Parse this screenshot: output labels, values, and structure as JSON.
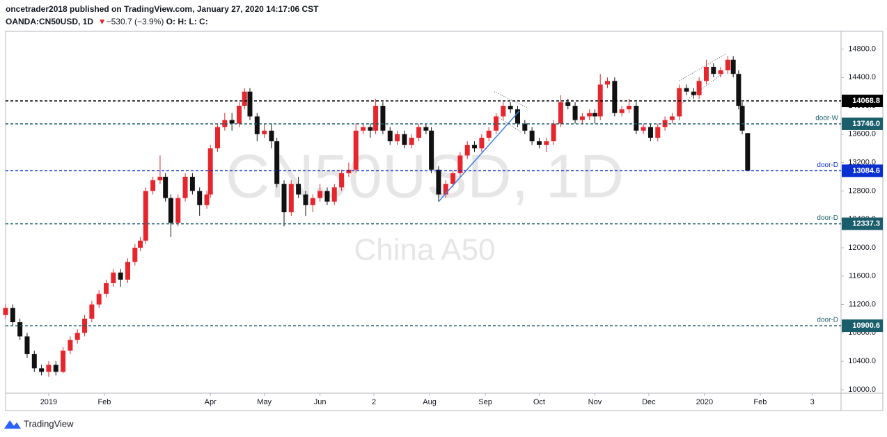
{
  "header": {
    "byline": "oncetrader2018 published on TradingView.com, January 27, 2020 14:17:06 CST",
    "symbol": "OANDA:CN50USD, 1D",
    "change": "−530.7 (−3.9%)",
    "o": "O:",
    "h": "H:",
    "l": "L:",
    "c": "C:"
  },
  "footer": {
    "brand": "TradingView"
  },
  "chart_data": {
    "type": "candlestick",
    "watermark": "CN50USD, 1D",
    "watermark_sub": "China A50",
    "up_color": "#e5262d",
    "down_color": "#111111",
    "xlim": [
      -24,
      441
    ],
    "xticks": [
      {
        "value": 0,
        "label": "2019"
      },
      {
        "value": 31,
        "label": "Feb"
      },
      {
        "value": 90,
        "label": "Apr"
      },
      {
        "value": 120,
        "label": "May"
      },
      {
        "value": 151,
        "label": "Jun"
      },
      {
        "value": 181,
        "label": "2"
      },
      {
        "value": 212,
        "label": "Aug"
      },
      {
        "value": 243,
        "label": "Sep"
      },
      {
        "value": 273,
        "label": "Oct"
      },
      {
        "value": 304,
        "label": "Nov"
      },
      {
        "value": 334,
        "label": "Dec"
      },
      {
        "value": 365,
        "label": "2020"
      },
      {
        "value": 396,
        "label": "Feb"
      },
      {
        "value": 425,
        "label": "3"
      }
    ],
    "ylim": [
      9950,
      15050
    ],
    "yticks": [
      {
        "value": 10000,
        "label": "10000.0"
      },
      {
        "value": 10400,
        "label": "10400.0"
      },
      {
        "value": 10800,
        "label": "10800.0"
      },
      {
        "value": 11200,
        "label": "11200.0"
      },
      {
        "value": 11600,
        "label": "11600.0"
      },
      {
        "value": 12000,
        "label": "12000.0"
      },
      {
        "value": 12400,
        "label": "12400.0"
      },
      {
        "value": 12800,
        "label": "12800.0"
      },
      {
        "value": 13200,
        "label": "13200.0"
      },
      {
        "value": 13600,
        "label": "13600.0"
      },
      {
        "value": 14000,
        "label": "14000.0"
      },
      {
        "value": 14400,
        "label": "14400.0"
      },
      {
        "value": 14800,
        "label": "14800.0"
      }
    ],
    "levels": [
      {
        "value": 14068.8,
        "label": "14068.8",
        "color": "#000000"
      },
      {
        "value": 13746.0,
        "label": "13746.0",
        "color": "#1b5e6b",
        "text": "door-W"
      },
      {
        "value": 13084.6,
        "label": "13084.6",
        "color": "#0a2fd1",
        "text": "door-D"
      },
      {
        "value": 12337.3,
        "label": "12337.3",
        "color": "#1b5e6b",
        "text": "door-D"
      },
      {
        "value": 10900.6,
        "label": "10900.6",
        "color": "#1b5e6b",
        "text": "door-D"
      }
    ],
    "drawings": [
      {
        "color": "#3d7fe0",
        "style": "solid",
        "points": [
          [
            217,
            12650
          ],
          [
            262,
            13930
          ]
        ]
      },
      {
        "color": "#555555",
        "style": "dotted",
        "points": [
          [
            248,
            14199
          ],
          [
            267,
            13966
          ]
        ]
      },
      {
        "color": "#555555",
        "style": "dotted",
        "points": [
          [
            249,
            13860
          ],
          [
            263,
            13627
          ]
        ]
      },
      {
        "color": "#555555",
        "style": "dotted",
        "points": [
          [
            351,
            14354
          ],
          [
            377,
            14732
          ]
        ]
      },
      {
        "color": "#555555",
        "style": "dotted",
        "points": [
          [
            351,
            14005
          ],
          [
            376,
            14470
          ]
        ]
      }
    ],
    "candles": [
      [
        -24,
        11050,
        11200,
        11000,
        11150
      ],
      [
        -20,
        11150,
        11200,
        10900,
        10950
      ],
      [
        -16,
        10950,
        11000,
        10700,
        10750
      ],
      [
        -12,
        10750,
        10800,
        10450,
        10500
      ],
      [
        -8,
        10500,
        10550,
        10250,
        10300
      ],
      [
        -4,
        10300,
        10350,
        10200,
        10250
      ],
      [
        0,
        10250,
        10400,
        10180,
        10350
      ],
      [
        4,
        10350,
        10400,
        10200,
        10250
      ],
      [
        8,
        10250,
        10600,
        10230,
        10550
      ],
      [
        12,
        10550,
        10750,
        10500,
        10700
      ],
      [
        16,
        10700,
        10850,
        10650,
        10800
      ],
      [
        20,
        10800,
        11050,
        10750,
        11000
      ],
      [
        24,
        11000,
        11250,
        10950,
        11200
      ],
      [
        28,
        11200,
        11400,
        11150,
        11350
      ],
      [
        32,
        11350,
        11550,
        11300,
        11500
      ],
      [
        36,
        11500,
        11700,
        11450,
        11650
      ],
      [
        40,
        11650,
        11700,
        11450,
        11550
      ],
      [
        44,
        11550,
        11850,
        11500,
        11800
      ],
      [
        48,
        11800,
        12050,
        11750,
        12000
      ],
      [
        51,
        12000,
        12150,
        11950,
        12100
      ],
      [
        54,
        12100,
        12850,
        12050,
        12800
      ],
      [
        58,
        12800,
        13000,
        12750,
        12950
      ],
      [
        62,
        12950,
        13300,
        12900,
        13000
      ],
      [
        65,
        13000,
        13050,
        12650,
        12700
      ],
      [
        68,
        12700,
        12750,
        12150,
        12350
      ],
      [
        72,
        12350,
        12750,
        12300,
        12700
      ],
      [
        76,
        12700,
        13050,
        12650,
        13000
      ],
      [
        80,
        13000,
        13050,
        12750,
        12800
      ],
      [
        84,
        12800,
        12850,
        12450,
        12600
      ],
      [
        88,
        12600,
        12800,
        12550,
        12750
      ],
      [
        90,
        12750,
        13450,
        12700,
        13400
      ],
      [
        94,
        13400,
        13750,
        13350,
        13700
      ],
      [
        98,
        13700,
        13900,
        13650,
        13800
      ],
      [
        102,
        13800,
        13900,
        13650,
        13750
      ],
      [
        106,
        13750,
        14050,
        13700,
        14000
      ],
      [
        109,
        14000,
        14250,
        13950,
        14200
      ],
      [
        112,
        14200,
        14250,
        13800,
        13850
      ],
      [
        116,
        13850,
        13900,
        13500,
        13600
      ],
      [
        120,
        13600,
        13750,
        13550,
        13650
      ],
      [
        124,
        13650,
        13750,
        13400,
        13500
      ],
      [
        127,
        13500,
        13550,
        12850,
        12900
      ],
      [
        131,
        12900,
        12950,
        12300,
        12500
      ],
      [
        135,
        12500,
        12950,
        12450,
        12900
      ],
      [
        139,
        12900,
        13000,
        12700,
        12750
      ],
      [
        143,
        12750,
        12800,
        12450,
        12600
      ],
      [
        147,
        12600,
        12750,
        12500,
        12700
      ],
      [
        151,
        12700,
        12900,
        12650,
        12800
      ],
      [
        155,
        12800,
        12850,
        12600,
        12650
      ],
      [
        159,
        12650,
        12900,
        12600,
        12850
      ],
      [
        163,
        12850,
        13100,
        12800,
        13050
      ],
      [
        167,
        13050,
        13200,
        13000,
        13100
      ],
      [
        171,
        13100,
        13750,
        13050,
        13650
      ],
      [
        175,
        13650,
        13750,
        13600,
        13700
      ],
      [
        179,
        13700,
        13750,
        13550,
        13650
      ],
      [
        182,
        13650,
        14100,
        13600,
        14000
      ],
      [
        186,
        14000,
        14050,
        13600,
        13650
      ],
      [
        190,
        13650,
        13700,
        13450,
        13500
      ],
      [
        194,
        13500,
        13650,
        13450,
        13600
      ],
      [
        198,
        13600,
        13650,
        13400,
        13450
      ],
      [
        202,
        13450,
        13600,
        13400,
        13550
      ],
      [
        206,
        13550,
        13750,
        13500,
        13700
      ],
      [
        210,
        13700,
        13750,
        13600,
        13650
      ],
      [
        213,
        13650,
        13700,
        13050,
        13100
      ],
      [
        217,
        13100,
        13150,
        12650,
        12750
      ],
      [
        221,
        12750,
        12950,
        12700,
        12900
      ],
      [
        225,
        12900,
        13100,
        12850,
        13050
      ],
      [
        229,
        13050,
        13350,
        13000,
        13300
      ],
      [
        233,
        13300,
        13500,
        13250,
        13450
      ],
      [
        237,
        13450,
        13500,
        13350,
        13400
      ],
      [
        241,
        13400,
        13600,
        13350,
        13550
      ],
      [
        245,
        13550,
        13700,
        13500,
        13650
      ],
      [
        249,
        13650,
        13900,
        13600,
        13850
      ],
      [
        253,
        13850,
        14050,
        13800,
        14000
      ],
      [
        257,
        14000,
        14050,
        13900,
        13950
      ],
      [
        261,
        13950,
        14000,
        13700,
        13750
      ],
      [
        265,
        13750,
        13800,
        13600,
        13650
      ],
      [
        269,
        13650,
        13700,
        13450,
        13500
      ],
      [
        273,
        13500,
        13550,
        13400,
        13450
      ],
      [
        277,
        13450,
        13550,
        13350,
        13500
      ],
      [
        281,
        13500,
        13800,
        13450,
        13750
      ],
      [
        285,
        13750,
        14150,
        13700,
        14050
      ],
      [
        289,
        14050,
        14100,
        13950,
        14000
      ],
      [
        293,
        14000,
        14050,
        13750,
        13800
      ],
      [
        297,
        13800,
        13900,
        13750,
        13850
      ],
      [
        301,
        13850,
        13950,
        13800,
        13900
      ],
      [
        304,
        13900,
        13950,
        13750,
        13850
      ],
      [
        307,
        13850,
        14450,
        13800,
        14300
      ],
      [
        311,
        14300,
        14400,
        14250,
        14350
      ],
      [
        315,
        14350,
        14400,
        13850,
        13900
      ],
      [
        319,
        13900,
        14000,
        13850,
        13950
      ],
      [
        323,
        13950,
        14100,
        13900,
        14000
      ],
      [
        327,
        14000,
        14050,
        13600,
        13650
      ],
      [
        331,
        13650,
        13750,
        13600,
        13700
      ],
      [
        335,
        13700,
        13750,
        13500,
        13550
      ],
      [
        339,
        13550,
        13750,
        13500,
        13700
      ],
      [
        343,
        13700,
        13850,
        13650,
        13800
      ],
      [
        347,
        13800,
        13900,
        13750,
        13850
      ],
      [
        351,
        13850,
        14300,
        13800,
        14250
      ],
      [
        355,
        14250,
        14300,
        14150,
        14200
      ],
      [
        359,
        14200,
        14250,
        14100,
        14150
      ],
      [
        362,
        14150,
        14400,
        14100,
        14350
      ],
      [
        366,
        14350,
        14650,
        14300,
        14550
      ],
      [
        370,
        14550,
        14600,
        14400,
        14450
      ],
      [
        374,
        14450,
        14550,
        14400,
        14500
      ],
      [
        378,
        14500,
        14700,
        14450,
        14650
      ],
      [
        381,
        14650,
        14700,
        14400,
        14450
      ],
      [
        384,
        14450,
        14500,
        13950,
        14000
      ],
      [
        386,
        14000,
        14050,
        13600,
        13650
      ],
      [
        389,
        13615.3,
        13615.3,
        13077.3,
        13084.6
      ]
    ]
  }
}
